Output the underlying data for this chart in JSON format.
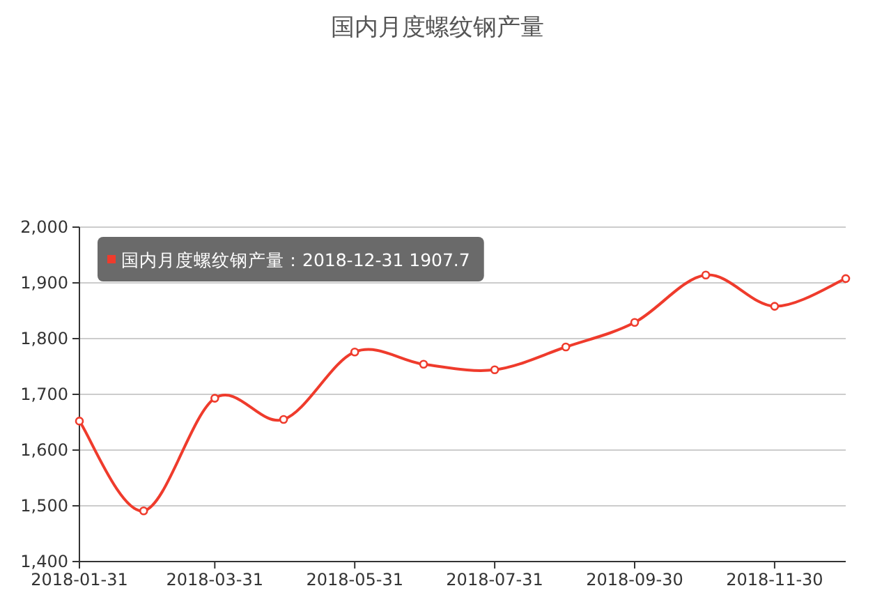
{
  "chart_data": {
    "type": "line",
    "title": "国内月度螺纹钢产量",
    "x": [
      "2018-01-31",
      "2018-02-28",
      "2018-03-31",
      "2018-04-30",
      "2018-05-31",
      "2018-06-30",
      "2018-07-31",
      "2018-08-31",
      "2018-09-30",
      "2018-10-31",
      "2018-11-30",
      "2018-12-31"
    ],
    "values": [
      1652,
      1491,
      1693,
      1655,
      1776,
      1754,
      1744,
      1785,
      1829,
      1914,
      1858,
      1907.7
    ],
    "color": "#ef3b2c",
    "xlim": [
      "2018-01-31",
      "2018-12-31"
    ],
    "xticks": [
      "2018-01-31",
      "2018-03-31",
      "2018-05-31",
      "2018-07-31",
      "2018-09-30",
      "2018-11-30"
    ],
    "ylim": [
      1400,
      2000
    ],
    "yticks": [
      {
        "value": 1400,
        "label": "1,400"
      },
      {
        "value": 1500,
        "label": "1,500"
      },
      {
        "value": 1600,
        "label": "1,600"
      },
      {
        "value": 1700,
        "label": "1,700"
      },
      {
        "value": 1800,
        "label": "1,800"
      },
      {
        "value": 1900,
        "label": "1,900"
      },
      {
        "value": 2000,
        "label": "2,000"
      }
    ],
    "grid": "y",
    "marker": "circle",
    "line_style": "solid",
    "annotations": [
      "国内月度螺纹钢产量：2018-12-31 1907.7"
    ]
  }
}
